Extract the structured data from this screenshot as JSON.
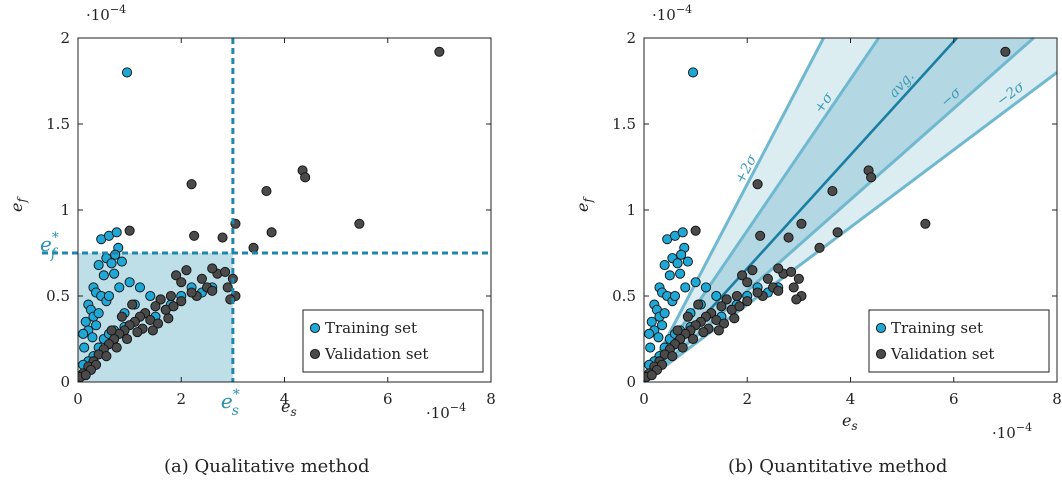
{
  "chart_data": [
    {
      "type": "scatter",
      "caption": "(a) Qualitative method",
      "xlabel": "e",
      "xlabel_sub": "s",
      "ylabel": "e",
      "ylabel_sub": "f",
      "x_exponent": "·10",
      "x_exponent_power": "−4",
      "y_exponent": "·10",
      "y_exponent_power": "−4",
      "xlim": [
        0,
        8
      ],
      "ylim": [
        0,
        2
      ],
      "x_ticks": [
        {
          "value": 0,
          "label": "0"
        },
        {
          "value": 2,
          "label": "2"
        },
        {
          "value": 4,
          "label": "4"
        },
        {
          "value": 6,
          "label": "6"
        },
        {
          "value": 8,
          "label": "8"
        }
      ],
      "y_ticks": [
        {
          "value": 0,
          "label": "0"
        },
        {
          "value": 0.5,
          "label": "0.5"
        },
        {
          "value": 1,
          "label": "1"
        },
        {
          "value": 1.5,
          "label": "1.5"
        },
        {
          "value": 2,
          "label": "2"
        }
      ],
      "threshold_x": 3.0,
      "threshold_y": 0.75,
      "threshold_x_label": "e",
      "threshold_x_label_sub": "s",
      "threshold_x_label_sup": "*",
      "threshold_y_label": "e",
      "threshold_y_label_sub": "f",
      "threshold_y_label_sup": "*",
      "legend": {
        "placement": "bottom-right",
        "entries": [
          {
            "label": "Training set",
            "color": "#1fa8d6"
          },
          {
            "label": "Validation set",
            "color": "#4a4a4a"
          }
        ]
      },
      "series": [
        {
          "name": "Training set",
          "color": "#1fa8d6",
          "points": [
            [
              0.95,
              1.8
            ],
            [
              0.45,
              0.83
            ],
            [
              0.6,
              0.85
            ],
            [
              0.75,
              0.87
            ],
            [
              0.78,
              0.78
            ],
            [
              0.72,
              0.74
            ],
            [
              0.55,
              0.72
            ],
            [
              0.65,
              0.69
            ],
            [
              0.85,
              0.7
            ],
            [
              0.4,
              0.68
            ],
            [
              0.5,
              0.62
            ],
            [
              0.7,
              0.63
            ],
            [
              0.3,
              0.55
            ],
            [
              0.35,
              0.52
            ],
            [
              0.45,
              0.5
            ],
            [
              0.55,
              0.47
            ],
            [
              0.2,
              0.45
            ],
            [
              0.25,
              0.42
            ],
            [
              0.3,
              0.38
            ],
            [
              0.4,
              0.4
            ],
            [
              0.15,
              0.35
            ],
            [
              0.2,
              0.3
            ],
            [
              0.1,
              0.28
            ],
            [
              0.28,
              0.26
            ],
            [
              0.12,
              0.2
            ],
            [
              0.35,
              0.33
            ],
            [
              0.6,
              0.5
            ],
            [
              0.8,
              0.55
            ],
            [
              1.0,
              0.58
            ],
            [
              1.2,
              0.55
            ],
            [
              1.1,
              0.45
            ],
            [
              1.4,
              0.5
            ],
            [
              1.6,
              0.48
            ],
            [
              1.8,
              0.45
            ],
            [
              2.0,
              0.5
            ],
            [
              2.2,
              0.55
            ],
            [
              0.9,
              0.4
            ],
            [
              1.3,
              0.4
            ],
            [
              1.5,
              0.38
            ],
            [
              0.7,
              0.3
            ],
            [
              0.5,
              0.25
            ],
            [
              0.3,
              0.15
            ],
            [
              0.2,
              0.12
            ],
            [
              0.1,
              0.1
            ],
            [
              0.4,
              0.2
            ],
            [
              0.6,
              0.28
            ],
            [
              0.9,
              0.32
            ],
            [
              1.7,
              0.42
            ],
            [
              2.4,
              0.52
            ],
            [
              2.6,
              0.55
            ]
          ]
        },
        {
          "name": "Validation set",
          "color": "#4a4a4a",
          "points": [
            [
              7.0,
              1.92
            ],
            [
              4.35,
              1.23
            ],
            [
              4.4,
              1.19
            ],
            [
              3.65,
              1.11
            ],
            [
              2.2,
              1.15
            ],
            [
              5.45,
              0.92
            ],
            [
              3.05,
              0.92
            ],
            [
              2.8,
              0.84
            ],
            [
              2.25,
              0.85
            ],
            [
              1.0,
              0.88
            ],
            [
              3.75,
              0.87
            ],
            [
              3.4,
              0.78
            ],
            [
              2.1,
              0.65
            ],
            [
              1.9,
              0.62
            ],
            [
              2.0,
              0.58
            ],
            [
              2.7,
              0.63
            ],
            [
              2.85,
              0.64
            ],
            [
              3.0,
              0.6
            ],
            [
              2.5,
              0.55
            ],
            [
              2.9,
              0.55
            ],
            [
              3.05,
              0.5
            ],
            [
              2.95,
              0.48
            ],
            [
              2.6,
              0.53
            ],
            [
              2.3,
              0.5
            ],
            [
              1.8,
              0.5
            ],
            [
              1.6,
              0.48
            ],
            [
              1.5,
              0.44
            ],
            [
              1.3,
              0.4
            ],
            [
              1.2,
              0.38
            ],
            [
              1.1,
              0.35
            ],
            [
              1.0,
              0.33
            ],
            [
              0.9,
              0.3
            ],
            [
              0.8,
              0.28
            ],
            [
              0.7,
              0.25
            ],
            [
              0.6,
              0.22
            ],
            [
              0.5,
              0.19
            ],
            [
              0.4,
              0.16
            ],
            [
              0.3,
              0.12
            ],
            [
              0.2,
              0.09
            ],
            [
              0.1,
              0.05
            ],
            [
              0.05,
              0.03
            ],
            [
              1.4,
              0.36
            ],
            [
              1.7,
              0.42
            ],
            [
              2.0,
              0.47
            ],
            [
              2.2,
              0.52
            ],
            [
              1.55,
              0.34
            ],
            [
              1.25,
              0.31
            ],
            [
              0.95,
              0.25
            ],
            [
              0.75,
              0.2
            ],
            [
              0.55,
              0.15
            ],
            [
              0.35,
              0.1
            ],
            [
              0.25,
              0.07
            ],
            [
              0.15,
              0.04
            ],
            [
              1.85,
              0.44
            ],
            [
              2.4,
              0.6
            ],
            [
              2.6,
              0.66
            ],
            [
              1.05,
              0.45
            ],
            [
              0.85,
              0.38
            ],
            [
              0.65,
              0.3
            ],
            [
              1.15,
              0.29
            ],
            [
              1.45,
              0.3
            ],
            [
              1.75,
              0.37
            ]
          ]
        }
      ]
    },
    {
      "type": "scatter",
      "caption": "(b) Quantitative method",
      "xlabel": "e",
      "xlabel_sub": "s",
      "ylabel": "e",
      "ylabel_sub": "f",
      "x_exponent": "·10",
      "x_exponent_power": "−4",
      "y_exponent": "·10",
      "y_exponent_power": "−4",
      "xlim": [
        0,
        8
      ],
      "ylim": [
        0,
        2
      ],
      "x_ticks": [
        {
          "value": 0,
          "label": "0"
        },
        {
          "value": 2,
          "label": "2"
        },
        {
          "value": 4,
          "label": "4"
        },
        {
          "value": 6,
          "label": "6"
        },
        {
          "value": 8,
          "label": "8"
        }
      ],
      "y_ticks": [
        {
          "value": 0,
          "label": "0"
        },
        {
          "value": 0.5,
          "label": "0.5"
        },
        {
          "value": 1,
          "label": "1"
        },
        {
          "value": 1.5,
          "label": "1.5"
        },
        {
          "value": 2,
          "label": "2"
        }
      ],
      "bands": [
        {
          "label": "+2σ",
          "slope": 0.575
        },
        {
          "label": "+σ",
          "slope": 0.44
        },
        {
          "label": "avg.",
          "slope": 0.33
        },
        {
          "label": "−σ",
          "slope": 0.265
        },
        {
          "label": "−2σ",
          "slope": 0.225
        }
      ],
      "band_color": "#3b9bb6",
      "legend": {
        "placement": "bottom-right",
        "entries": [
          {
            "label": "Training set",
            "color": "#1fa8d6"
          },
          {
            "label": "Validation set",
            "color": "#4a4a4a"
          }
        ]
      },
      "series_ref": 0
    }
  ]
}
